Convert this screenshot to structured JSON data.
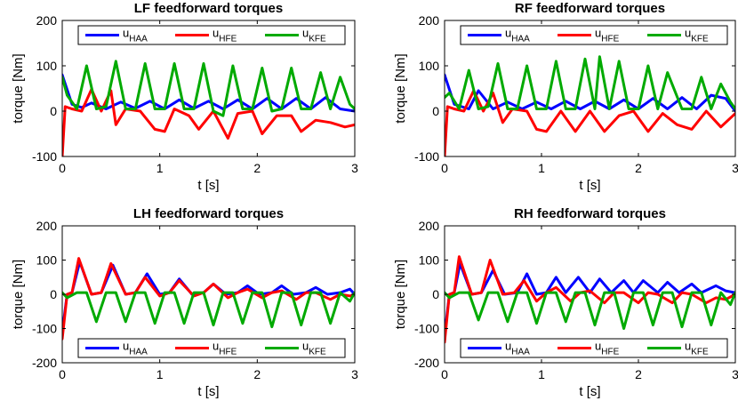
{
  "chart_data": [
    {
      "type": "line",
      "title": "LF feedforward torques",
      "xlabel": "t [s]",
      "ylabel": "torque [Nm]",
      "xlim": [
        0,
        3
      ],
      "ylim": [
        -100,
        200
      ],
      "xticks": [
        "0",
        "1",
        "2",
        "3"
      ],
      "yticks": [
        "-100",
        "0",
        "100",
        "200"
      ],
      "legend_position": "top",
      "series": [
        {
          "name": "u",
          "subscript": "HAA",
          "color": "#0000ff",
          "x": [
            0,
            0.1,
            0.2,
            0.3,
            0.45,
            0.6,
            0.75,
            0.9,
            1.05,
            1.2,
            1.35,
            1.5,
            1.65,
            1.8,
            1.95,
            2.1,
            2.25,
            2.4,
            2.55,
            2.7,
            2.85,
            3.0
          ],
          "y": [
            80,
            15,
            8,
            18,
            5,
            20,
            6,
            22,
            5,
            25,
            6,
            22,
            5,
            25,
            5,
            28,
            5,
            28,
            5,
            30,
            5,
            0
          ]
        },
        {
          "name": "u",
          "subscript": "HFE",
          "color": "#ff0000",
          "x": [
            0,
            0.03,
            0.1,
            0.2,
            0.3,
            0.4,
            0.5,
            0.55,
            0.65,
            0.8,
            0.95,
            1.05,
            1.15,
            1.3,
            1.4,
            1.55,
            1.7,
            1.8,
            1.95,
            2.05,
            2.2,
            2.35,
            2.45,
            2.6,
            2.75,
            2.9,
            3.0
          ],
          "y": [
            -100,
            10,
            5,
            0,
            48,
            0,
            45,
            -30,
            5,
            0,
            -40,
            -45,
            5,
            -10,
            -40,
            0,
            -60,
            -5,
            0,
            -50,
            -10,
            -10,
            -45,
            -20,
            -25,
            -35,
            -30
          ]
        },
        {
          "name": "u",
          "subscript": "KFE",
          "color": "#00aa00",
          "x": [
            0,
            0.05,
            0.15,
            0.25,
            0.35,
            0.45,
            0.55,
            0.65,
            0.75,
            0.85,
            0.95,
            1.05,
            1.15,
            1.25,
            1.35,
            1.45,
            1.55,
            1.65,
            1.75,
            1.85,
            1.95,
            2.05,
            2.15,
            2.25,
            2.35,
            2.45,
            2.55,
            2.65,
            2.75,
            2.85,
            2.95,
            3.0
          ],
          "y": [
            75,
            35,
            5,
            100,
            5,
            10,
            110,
            5,
            5,
            105,
            5,
            5,
            105,
            5,
            5,
            105,
            0,
            -10,
            100,
            5,
            5,
            95,
            0,
            5,
            95,
            5,
            5,
            85,
            5,
            75,
            15,
            5
          ]
        }
      ]
    },
    {
      "type": "line",
      "title": "RF feedforward torques",
      "xlabel": "t [s]",
      "ylabel": "torque [Nm]",
      "xlim": [
        0,
        3
      ],
      "ylim": [
        -100,
        200
      ],
      "xticks": [
        "0",
        "1",
        "2",
        "3"
      ],
      "yticks": [
        "-100",
        "0",
        "100",
        "200"
      ],
      "legend_position": "top",
      "series": [
        {
          "name": "u",
          "subscript": "HAA",
          "color": "#0000ff",
          "x": [
            0,
            0.1,
            0.25,
            0.35,
            0.5,
            0.65,
            0.8,
            0.95,
            1.1,
            1.25,
            1.4,
            1.55,
            1.7,
            1.85,
            2.0,
            2.15,
            2.3,
            2.45,
            2.6,
            2.75,
            2.9,
            3.0
          ],
          "y": [
            80,
            15,
            5,
            45,
            5,
            20,
            5,
            20,
            5,
            22,
            5,
            22,
            5,
            25,
            5,
            28,
            5,
            30,
            5,
            35,
            28,
            0
          ]
        },
        {
          "name": "u",
          "subscript": "HFE",
          "color": "#ff0000",
          "x": [
            0,
            0.03,
            0.1,
            0.2,
            0.3,
            0.4,
            0.5,
            0.6,
            0.7,
            0.85,
            0.95,
            1.05,
            1.2,
            1.35,
            1.5,
            1.65,
            1.8,
            1.95,
            2.1,
            2.25,
            2.4,
            2.55,
            2.7,
            2.85,
            3.0
          ],
          "y": [
            -100,
            10,
            5,
            0,
            45,
            0,
            40,
            -25,
            5,
            0,
            -40,
            -45,
            0,
            -45,
            0,
            -45,
            -10,
            0,
            -45,
            -5,
            -30,
            -40,
            0,
            -35,
            -5
          ]
        },
        {
          "name": "u",
          "subscript": "KFE",
          "color": "#00aa00",
          "x": [
            0,
            0.05,
            0.15,
            0.25,
            0.35,
            0.45,
            0.55,
            0.65,
            0.75,
            0.85,
            0.95,
            1.05,
            1.15,
            1.25,
            1.35,
            1.45,
            1.55,
            1.6,
            1.7,
            1.8,
            1.9,
            2.0,
            2.1,
            2.2,
            2.3,
            2.45,
            2.55,
            2.65,
            2.75,
            2.85,
            2.95,
            3.0
          ],
          "y": [
            30,
            40,
            5,
            90,
            5,
            10,
            105,
            5,
            5,
            100,
            5,
            5,
            110,
            5,
            5,
            115,
            5,
            120,
            5,
            110,
            5,
            5,
            100,
            5,
            85,
            5,
            5,
            75,
            5,
            60,
            20,
            5
          ]
        }
      ]
    },
    {
      "type": "line",
      "title": "LH feedforward torques",
      "xlabel": "t [s]",
      "ylabel": "torque [Nm]",
      "xlim": [
        0,
        3
      ],
      "ylim": [
        -200,
        200
      ],
      "xticks": [
        "0",
        "1",
        "2",
        "3"
      ],
      "yticks": [
        "-200",
        "-100",
        "0",
        "100",
        "200"
      ],
      "legend_position": "bottom",
      "series": [
        {
          "name": "u",
          "subscript": "HAA",
          "color": "#0000ff",
          "x": [
            0,
            0.05,
            0.1,
            0.18,
            0.3,
            0.4,
            0.52,
            0.65,
            0.75,
            0.87,
            1.0,
            1.1,
            1.2,
            1.33,
            1.45,
            1.55,
            1.68,
            1.8,
            1.9,
            2.02,
            2.15,
            2.25,
            2.37,
            2.5,
            2.6,
            2.72,
            2.85,
            2.95,
            3.0
          ],
          "y": [
            -110,
            0,
            5,
            95,
            0,
            5,
            85,
            0,
            5,
            60,
            0,
            5,
            45,
            0,
            5,
            30,
            0,
            5,
            25,
            0,
            5,
            25,
            0,
            5,
            20,
            0,
            5,
            15,
            0
          ]
        },
        {
          "name": "u",
          "subscript": "HFE",
          "color": "#ff0000",
          "x": [
            0,
            0.05,
            0.1,
            0.17,
            0.3,
            0.4,
            0.5,
            0.65,
            0.75,
            0.85,
            1.0,
            1.1,
            1.2,
            1.35,
            1.45,
            1.55,
            1.7,
            1.8,
            1.9,
            2.05,
            2.15,
            2.25,
            2.4,
            2.5,
            2.6,
            2.75,
            2.85,
            2.95,
            3.0
          ],
          "y": [
            -130,
            0,
            5,
            105,
            0,
            5,
            90,
            0,
            5,
            50,
            -5,
            5,
            40,
            -5,
            5,
            30,
            -10,
            5,
            15,
            -10,
            5,
            10,
            -15,
            5,
            5,
            -15,
            0,
            -5,
            0
          ]
        },
        {
          "name": "u",
          "subscript": "KFE",
          "color": "#00aa00",
          "x": [
            0,
            0.05,
            0.15,
            0.25,
            0.35,
            0.45,
            0.55,
            0.65,
            0.75,
            0.85,
            0.95,
            1.05,
            1.15,
            1.25,
            1.35,
            1.45,
            1.55,
            1.65,
            1.75,
            1.85,
            1.95,
            2.05,
            2.15,
            2.25,
            2.35,
            2.45,
            2.55,
            2.65,
            2.75,
            2.85,
            2.95,
            3.0
          ],
          "y": [
            5,
            -10,
            5,
            5,
            -80,
            5,
            5,
            -80,
            5,
            5,
            -85,
            5,
            5,
            -85,
            5,
            5,
            -90,
            5,
            5,
            -85,
            5,
            5,
            -95,
            5,
            5,
            -90,
            5,
            5,
            -85,
            5,
            -20,
            5
          ]
        }
      ]
    },
    {
      "type": "line",
      "title": "RH feedforward torques",
      "xlabel": "t [s]",
      "ylabel": "torque [Nm]",
      "xlim": [
        0,
        3
      ],
      "ylim": [
        -200,
        200
      ],
      "xticks": [
        "0",
        "1",
        "2",
        "3"
      ],
      "yticks": [
        "-200",
        "-100",
        "0",
        "100",
        "200"
      ],
      "legend_position": "bottom",
      "series": [
        {
          "name": "u",
          "subscript": "HAA",
          "color": "#0000ff",
          "x": [
            0,
            0.05,
            0.1,
            0.16,
            0.28,
            0.38,
            0.5,
            0.62,
            0.75,
            0.85,
            0.95,
            1.05,
            1.15,
            1.25,
            1.38,
            1.5,
            1.6,
            1.72,
            1.85,
            1.95,
            2.05,
            2.2,
            2.3,
            2.42,
            2.55,
            2.65,
            2.8,
            2.9,
            3.0
          ],
          "y": [
            -120,
            0,
            5,
            90,
            0,
            5,
            70,
            0,
            5,
            60,
            0,
            5,
            50,
            5,
            50,
            5,
            45,
            5,
            40,
            5,
            40,
            5,
            35,
            5,
            30,
            5,
            25,
            10,
            5
          ]
        },
        {
          "name": "u",
          "subscript": "HFE",
          "color": "#ff0000",
          "x": [
            0,
            0.05,
            0.1,
            0.15,
            0.28,
            0.38,
            0.47,
            0.6,
            0.72,
            0.82,
            0.95,
            1.05,
            1.15,
            1.3,
            1.4,
            1.5,
            1.65,
            1.75,
            1.85,
            2.0,
            2.1,
            2.2,
            2.35,
            2.45,
            2.55,
            2.7,
            2.8,
            2.9,
            3.0
          ],
          "y": [
            -140,
            0,
            5,
            110,
            0,
            5,
            100,
            0,
            5,
            40,
            -20,
            5,
            20,
            -20,
            5,
            10,
            -25,
            5,
            5,
            -25,
            5,
            0,
            -25,
            5,
            0,
            -25,
            -10,
            -15,
            0
          ]
        },
        {
          "name": "u",
          "subscript": "KFE",
          "color": "#00aa00",
          "x": [
            0,
            0.05,
            0.15,
            0.25,
            0.35,
            0.45,
            0.55,
            0.65,
            0.75,
            0.85,
            0.95,
            1.05,
            1.15,
            1.25,
            1.35,
            1.45,
            1.55,
            1.65,
            1.75,
            1.85,
            1.95,
            2.05,
            2.15,
            2.25,
            2.35,
            2.45,
            2.55,
            2.65,
            2.75,
            2.85,
            2.95,
            3.0
          ],
          "y": [
            5,
            -10,
            5,
            5,
            -75,
            5,
            5,
            -80,
            5,
            5,
            -85,
            5,
            5,
            -80,
            5,
            5,
            -90,
            5,
            5,
            -100,
            5,
            5,
            -90,
            5,
            5,
            -95,
            5,
            5,
            -90,
            5,
            -30,
            5
          ]
        }
      ]
    }
  ]
}
